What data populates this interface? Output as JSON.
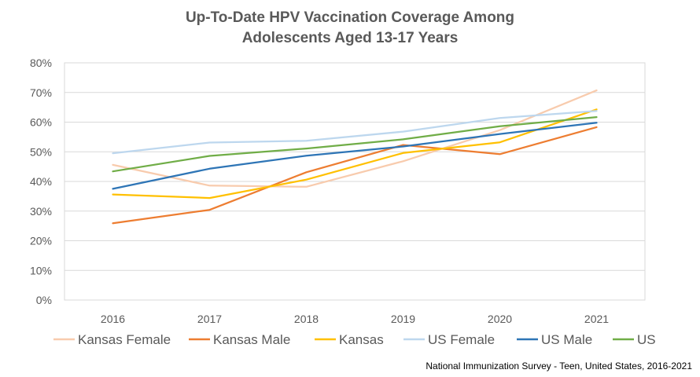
{
  "chart_data": {
    "type": "line",
    "title_lines": [
      "Up-To-Date HPV Vaccination Coverage Among",
      "Adolescents Aged 13-17 Years"
    ],
    "x": [
      "2016",
      "2017",
      "2018",
      "2019",
      "2020",
      "2021"
    ],
    "y_ticks": [
      "0%",
      "10%",
      "20%",
      "30%",
      "40%",
      "50%",
      "60%",
      "70%",
      "80%"
    ],
    "ylim": [
      0,
      80
    ],
    "grid": true,
    "legend_position": "bottom",
    "series": [
      {
        "name": "Kansas Female",
        "color": "#F8CBAD",
        "values": [
          45.6,
          38.6,
          38.2,
          46.8,
          57.3,
          70.7
        ]
      },
      {
        "name": "Kansas Male",
        "color": "#ED7D31",
        "values": [
          25.9,
          30.4,
          43.1,
          52.3,
          49.2,
          58.3
        ]
      },
      {
        "name": "Kansas",
        "color": "#FFC000",
        "values": [
          35.6,
          34.4,
          40.6,
          49.6,
          53.2,
          64.3
        ]
      },
      {
        "name": "US Female",
        "color": "#BDD7EE",
        "values": [
          49.5,
          53.1,
          53.7,
          56.8,
          61.4,
          63.8
        ]
      },
      {
        "name": "US Male",
        "color": "#2E75B6",
        "values": [
          37.5,
          44.3,
          48.7,
          51.8,
          56.0,
          59.8
        ]
      },
      {
        "name": "US",
        "color": "#70AD47",
        "values": [
          43.4,
          48.6,
          51.1,
          54.2,
          58.6,
          61.7
        ]
      }
    ]
  },
  "source_note": "National Immunization Survey - Teen, United States, 2016-2021"
}
